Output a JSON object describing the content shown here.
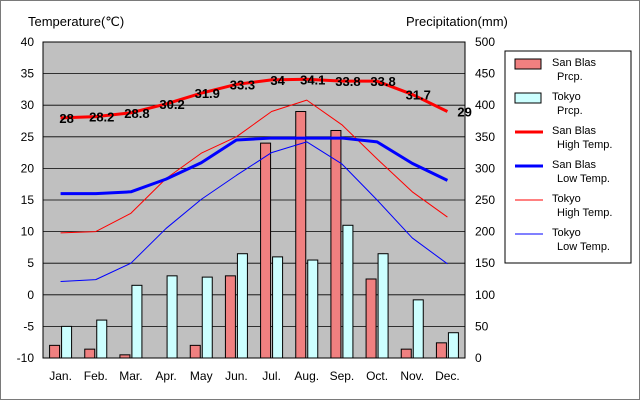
{
  "chart_data": {
    "type": "bar",
    "left_axis_title": "Temperature(℃)",
    "right_axis_title": "Precipitation(mm)",
    "categories": [
      "Jan.",
      "Feb.",
      "Mar.",
      "Apr.",
      "May",
      "Jun.",
      "Jul.",
      "Aug.",
      "Sep.",
      "Oct.",
      "Nov.",
      "Dec."
    ],
    "ylim_temp": [
      -10,
      40
    ],
    "ylim_precip": [
      0,
      500
    ],
    "yticks_temp": [
      "40",
      "35",
      "30",
      "25",
      "20",
      "15",
      "10",
      "5",
      "0",
      "-5",
      "-10"
    ],
    "yticks_precip": [
      "500",
      "450",
      "400",
      "350",
      "300",
      "250",
      "200",
      "150",
      "100",
      "50",
      "0"
    ],
    "grid": "horizontal",
    "legend_position": "right",
    "plot_background": "#c0c0c0",
    "bar_series": [
      {
        "name": "San Blas\nPrcp.",
        "color": "#f08080",
        "values": [
          20,
          14,
          5,
          0,
          20,
          130,
          340,
          390,
          360,
          125,
          14,
          24
        ]
      },
      {
        "name": "Tokyo\nPrcp.",
        "color": "#ccffff",
        "values": [
          50,
          60,
          115,
          130,
          128,
          165,
          160,
          155,
          210,
          165,
          92,
          40
        ]
      }
    ],
    "line_series": [
      {
        "name": "San Blas\nHigh Temp.",
        "color": "#ff0000",
        "width": 3,
        "values": [
          28,
          28.2,
          28.8,
          30.2,
          31.9,
          33.3,
          34,
          34.1,
          33.8,
          33.8,
          31.7,
          29
        ]
      },
      {
        "name": "San Blas\nLow Temp.",
        "color": "#0000ff",
        "width": 3,
        "values": [
          16,
          16,
          16.3,
          18.3,
          20.9,
          24.5,
          24.8,
          24.8,
          24.8,
          24.2,
          20.8,
          18.1
        ]
      },
      {
        "name": "Tokyo\nHigh Temp.",
        "color": "#ff0000",
        "width": 1,
        "values": [
          9.8,
          10,
          12.9,
          18.4,
          22.4,
          25,
          29,
          30.8,
          26.9,
          21.5,
          16.3,
          12.3
        ]
      },
      {
        "name": "Tokyo\nLow Temp.",
        "color": "#0000ff",
        "width": 1,
        "values": [
          2.1,
          2.4,
          5,
          10.5,
          15.1,
          18.9,
          22.5,
          24.2,
          20.7,
          15,
          9,
          4.9
        ]
      }
    ],
    "data_labels": [
      "28",
      "28.2",
      "28.8",
      "30.2",
      "31.9",
      "33.3",
      "34",
      "34.1",
      "33.8",
      "33.8",
      "31.7",
      "29"
    ]
  }
}
